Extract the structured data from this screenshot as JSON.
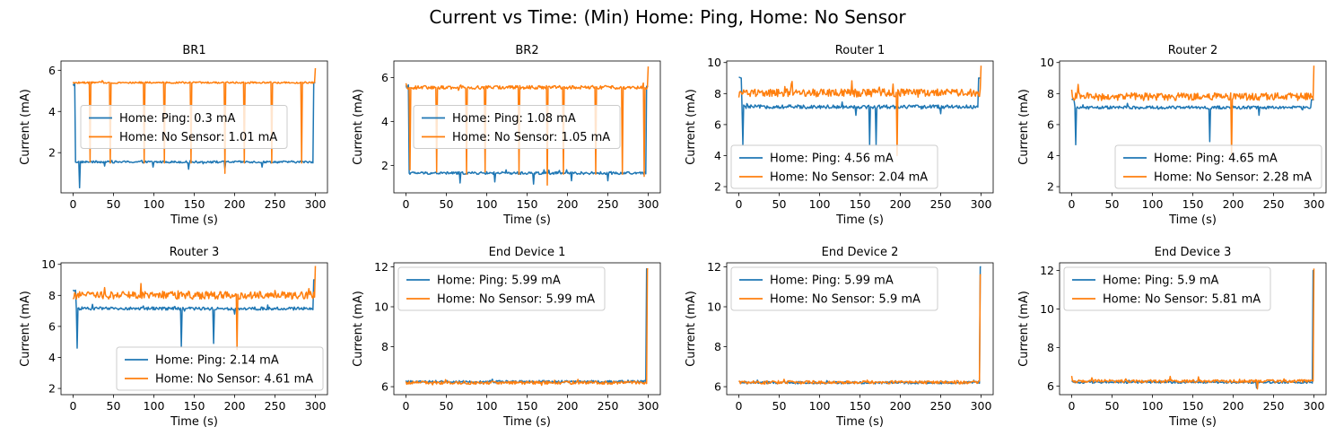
{
  "figure": {
    "suptitle": "Current vs Time: (Min) Home: Ping, Home: No Sensor"
  },
  "colors": {
    "ping": "#1f77b4",
    "nosensor": "#ff7f0e"
  },
  "chart_data": [
    {
      "type": "line",
      "title": "BR1",
      "xlabel": "Time (s)",
      "ylabel": "Current (mA)",
      "xlim": [
        -15,
        315
      ],
      "ylim": [
        0.05,
        6.45
      ],
      "xticks": [
        0,
        50,
        100,
        150,
        200,
        250,
        300
      ],
      "yticks": [
        2,
        4,
        6
      ],
      "legend": "center-left",
      "series": [
        {
          "name": "Home: Ping: 0.3 mA",
          "color": "#1f77b4",
          "base": 1.55,
          "start": 5.3,
          "start_x": [
            0,
            2
          ],
          "noise": 0.05,
          "end_x": 297,
          "end": 5.4,
          "dips": [
            [
              8,
              0.3
            ],
            [
              143,
              1.2
            ],
            [
              188,
              1.2
            ],
            [
              234,
              1.3
            ],
            [
              99,
              1.3
            ],
            [
              39,
              1.35
            ]
          ]
        },
        {
          "name": "Home: No Sensor: 1.01 mA",
          "color": "#ff7f0e",
          "base": 5.4,
          "start": 5.4,
          "start_x": [
            0,
            0
          ],
          "noise": 0.04,
          "end_x": 299,
          "end": 6.1,
          "dips": [
            [
              21,
              1.55
            ],
            [
              46,
              1.5
            ],
            [
              88,
              1.5
            ],
            [
              113,
              1.5
            ],
            [
              146,
              1.5
            ],
            [
              188,
              1.0
            ],
            [
              212,
              1.5
            ],
            [
              246,
              1.5
            ],
            [
              283,
              1.5
            ]
          ]
        }
      ]
    },
    {
      "type": "line",
      "title": "BR2",
      "xlabel": "Time (s)",
      "ylabel": "Current (mA)",
      "xlim": [
        -15,
        315
      ],
      "ylim": [
        0.75,
        6.75
      ],
      "xticks": [
        0,
        50,
        100,
        150,
        200,
        250,
        300
      ],
      "yticks": [
        2,
        4,
        6
      ],
      "legend": "center-left",
      "series": [
        {
          "name": "Home: Ping: 1.08 mA",
          "color": "#1f77b4",
          "base": 1.65,
          "start": 5.6,
          "start_x": [
            0,
            3
          ],
          "noise": 0.06,
          "end_x": 297,
          "end": 5.6,
          "dips": [
            [
              67,
              1.2
            ],
            [
              110,
              1.25
            ],
            [
              158,
              1.15
            ],
            [
              205,
              1.3
            ],
            [
              250,
              1.3
            ]
          ]
        },
        {
          "name": "Home: No Sensor: 1.05 mA",
          "color": "#ff7f0e",
          "base": 5.55,
          "start": 5.7,
          "start_x": [
            0,
            0
          ],
          "noise": 0.08,
          "end_x": 299,
          "end": 6.5,
          "dips": [
            [
              5,
              1.8
            ],
            [
              38,
              1.7
            ],
            [
              75,
              1.6
            ],
            [
              98,
              1.7
            ],
            [
              140,
              1.6
            ],
            [
              175,
              1.1
            ],
            [
              195,
              1.6
            ],
            [
              235,
              1.6
            ],
            [
              268,
              1.6
            ],
            [
              295,
              1.5
            ]
          ]
        }
      ]
    },
    {
      "type": "line",
      "title": "Router 1",
      "xlabel": "Time (s)",
      "ylabel": "Current (mA)",
      "xlim": [
        -15,
        315
      ],
      "ylim": [
        1.6,
        10.1
      ],
      "xticks": [
        0,
        50,
        100,
        150,
        200,
        250,
        300
      ],
      "yticks": [
        2,
        4,
        6,
        8,
        10
      ],
      "legend": "lower-left",
      "series": [
        {
          "name": "Home: Ping: 4.56 mA",
          "color": "#1f77b4",
          "base": 7.15,
          "start": 9.0,
          "start_x": [
            0,
            3
          ],
          "noise": 0.12,
          "end_x": 296,
          "end": 9.0,
          "dips": [
            [
              5,
              4.7
            ],
            [
              162,
              4.7
            ],
            [
              170,
              4.7
            ],
            [
              145,
              6.6
            ],
            [
              250,
              6.7
            ]
          ]
        },
        {
          "name": "Home: No Sensor: 2.04 mA",
          "color": "#ff7f0e",
          "base": 8.05,
          "start": 7.7,
          "start_x": [
            0,
            0
          ],
          "noise": 0.25,
          "end_x": 299,
          "end": 9.8,
          "dips": [
            [
              196,
              4.0
            ]
          ]
        }
      ]
    },
    {
      "type": "line",
      "title": "Router 2",
      "xlabel": "Time (s)",
      "ylabel": "Current (mA)",
      "xlim": [
        -15,
        315
      ],
      "ylim": [
        1.6,
        10.1
      ],
      "xticks": [
        0,
        50,
        100,
        150,
        200,
        250,
        300
      ],
      "yticks": [
        2,
        4,
        6,
        8,
        10
      ],
      "legend": "lower-right",
      "series": [
        {
          "name": "Home: Ping: 4.65 mA",
          "color": "#1f77b4",
          "base": 7.1,
          "start": 7.6,
          "start_x": [
            0,
            3
          ],
          "noise": 0.1,
          "end_x": 296,
          "end": 7.6,
          "dips": [
            [
              5,
              4.7
            ],
            [
              171,
              4.9
            ],
            [
              232,
              6.6
            ]
          ]
        },
        {
          "name": "Home: No Sensor: 2.28 mA",
          "color": "#ff7f0e",
          "base": 7.8,
          "start": 8.2,
          "start_x": [
            0,
            0
          ],
          "noise": 0.25,
          "end_x": 299,
          "end": 9.8,
          "dips": [
            [
              198,
              4.0
            ]
          ]
        }
      ]
    },
    {
      "type": "line",
      "title": "Router 3",
      "xlabel": "Time (s)",
      "ylabel": "Current (mA)",
      "xlim": [
        -15,
        315
      ],
      "ylim": [
        1.6,
        10.1
      ],
      "xticks": [
        0,
        50,
        100,
        150,
        200,
        250,
        300
      ],
      "yticks": [
        2,
        4,
        6,
        8,
        10
      ],
      "legend": "lower-right",
      "series": [
        {
          "name": "Home: Ping: 2.14 mA",
          "color": "#1f77b4",
          "base": 7.15,
          "start": 8.3,
          "start_x": [
            0,
            3
          ],
          "noise": 0.1,
          "end_x": 297,
          "end": 9.0,
          "dips": [
            [
              5,
              4.6
            ],
            [
              134,
              4.7
            ],
            [
              174,
              4.9
            ],
            [
              200,
              6.8
            ]
          ]
        },
        {
          "name": "Home: No Sensor: 4.61 mA",
          "color": "#ff7f0e",
          "base": 8.0,
          "start": 7.7,
          "start_x": [
            0,
            0
          ],
          "noise": 0.25,
          "end_x": 299,
          "end": 9.9,
          "dips": [
            [
              203,
              4.5
            ]
          ]
        }
      ]
    },
    {
      "type": "line",
      "title": "End Device 1",
      "xlabel": "Time (s)",
      "ylabel": "Current (mA)",
      "xlim": [
        -15,
        315
      ],
      "ylim": [
        5.6,
        12.2
      ],
      "xticks": [
        0,
        50,
        100,
        150,
        200,
        250,
        300
      ],
      "yticks": [
        6,
        8,
        10,
        12
      ],
      "legend": "upper-left",
      "series": [
        {
          "name": "Home: Ping: 5.99 mA",
          "color": "#1f77b4",
          "base": 6.25,
          "start": 6.25,
          "start_x": [
            0,
            0
          ],
          "noise": 0.06,
          "end_x": 297,
          "end": 11.9,
          "dips": []
        },
        {
          "name": "Home: No Sensor: 5.99 mA",
          "color": "#ff7f0e",
          "base": 6.2,
          "start": 6.2,
          "start_x": [
            0,
            0
          ],
          "noise": 0.08,
          "end_x": 298,
          "end": 11.9,
          "dips": []
        }
      ]
    },
    {
      "type": "line",
      "title": "End Device 2",
      "xlabel": "Time (s)",
      "ylabel": "Current (mA)",
      "xlim": [
        -15,
        315
      ],
      "ylim": [
        5.6,
        12.2
      ],
      "xticks": [
        0,
        50,
        100,
        150,
        200,
        250,
        300
      ],
      "yticks": [
        6,
        8,
        10,
        12
      ],
      "legend": "upper-left",
      "series": [
        {
          "name": "Home: Ping: 5.99 mA",
          "color": "#1f77b4",
          "base": 6.2,
          "start": 6.2,
          "start_x": [
            0,
            0
          ],
          "noise": 0.06,
          "end_x": 298,
          "end": 12.0,
          "dips": []
        },
        {
          "name": "Home: No Sensor: 5.9 mA",
          "color": "#ff7f0e",
          "base": 6.22,
          "start": 6.22,
          "start_x": [
            0,
            0
          ],
          "noise": 0.08,
          "end_x": 298,
          "end": 11.6,
          "dips": []
        }
      ]
    },
    {
      "type": "line",
      "title": "End Device 3",
      "xlabel": "Time (s)",
      "ylabel": "Current (mA)",
      "xlim": [
        -15,
        315
      ],
      "ylim": [
        5.55,
        12.4
      ],
      "xticks": [
        0,
        50,
        100,
        150,
        200,
        250,
        300
      ],
      "yticks": [
        6,
        8,
        10,
        12
      ],
      "legend": "upper-left",
      "series": [
        {
          "name": "Home: Ping: 5.9 mA",
          "color": "#1f77b4",
          "base": 6.2,
          "start": 6.2,
          "start_x": [
            0,
            0
          ],
          "noise": 0.06,
          "end_x": 298,
          "end": 12.0,
          "dips": [
            [
              229,
              5.9
            ]
          ]
        },
        {
          "name": "Home: No Sensor: 5.81 mA",
          "color": "#ff7f0e",
          "base": 6.25,
          "start": 6.45,
          "start_x": [
            0,
            0
          ],
          "noise": 0.08,
          "end_x": 299,
          "end": 12.1,
          "dips": [
            [
              230,
              5.85
            ]
          ]
        }
      ]
    }
  ]
}
